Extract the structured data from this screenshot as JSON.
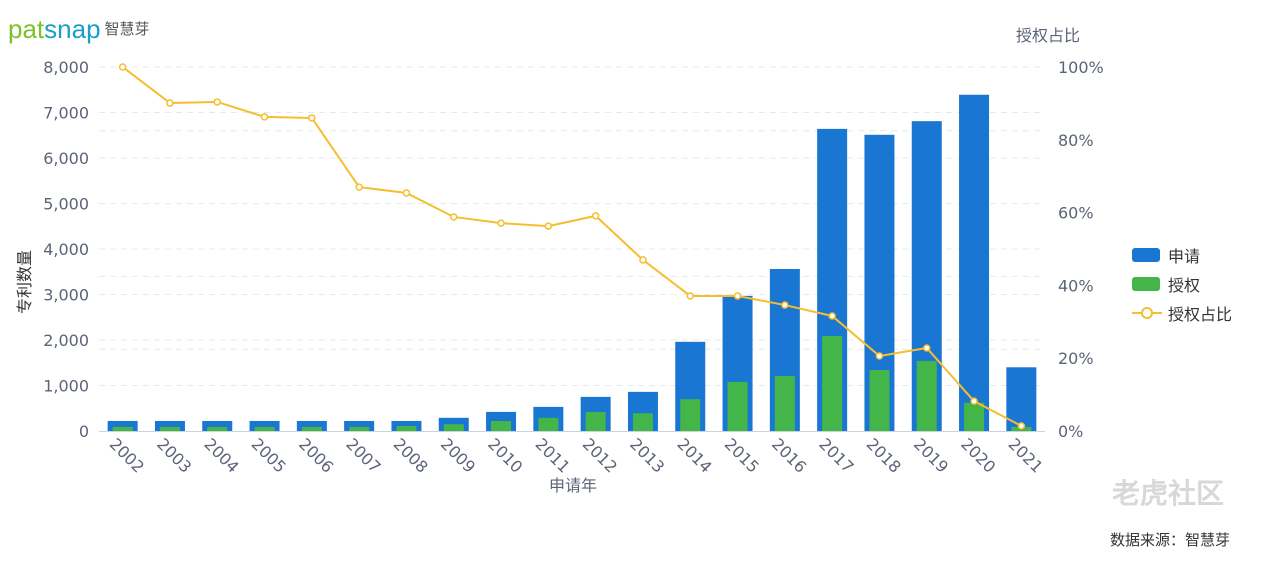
{
  "logo": {
    "brand_a": "pat",
    "brand_b": "snap",
    "cn": "智慧芽"
  },
  "watermark": "老虎社区",
  "source": "数据来源：智慧芽",
  "colors": {
    "apply": "#1976d2",
    "grant": "#43b549",
    "ratio": "#f5be2e"
  },
  "chart_data": {
    "type": "bar",
    "xlabel": "申请年",
    "ylabel": "专利数量",
    "y2label": "授权占比",
    "ylim": [
      0,
      8000
    ],
    "y2lim": [
      0,
      100
    ],
    "yticks": [
      "0",
      "1,000",
      "2,000",
      "3,000",
      "4,000",
      "5,000",
      "6,000",
      "7,000",
      "8,000"
    ],
    "y2ticks": [
      "0%",
      "20%",
      "40%",
      "60%",
      "80%",
      "100%"
    ],
    "categories": [
      "2002",
      "2003",
      "2004",
      "2005",
      "2006",
      "2007",
      "2008",
      "2009",
      "2010",
      "2011",
      "2012",
      "2013",
      "2014",
      "2015",
      "2016",
      "2017",
      "2018",
      "2019",
      "2020",
      "2021"
    ],
    "series": [
      {
        "name": "申请",
        "type": "bar",
        "values": [
          220,
          220,
          220,
          220,
          220,
          220,
          220,
          290,
          420,
          530,
          750,
          860,
          1960,
          2970,
          3560,
          6640,
          6510,
          6810,
          7390,
          1400
        ]
      },
      {
        "name": "授权",
        "type": "bar",
        "values": [
          90,
          90,
          90,
          90,
          90,
          90,
          110,
          150,
          220,
          290,
          420,
          390,
          700,
          1080,
          1210,
          2090,
          1340,
          1540,
          620,
          90
        ]
      },
      {
        "name": "授权占比",
        "type": "line",
        "axis": "right",
        "values": [
          100,
          90.1,
          90.4,
          86.3,
          86,
          67,
          65.4,
          58.8,
          57.1,
          56.3,
          59.1,
          47,
          37.1,
          37.1,
          34.6,
          31.6,
          20.6,
          22.8,
          8.2,
          1.4
        ]
      }
    ],
    "legend": "right"
  }
}
